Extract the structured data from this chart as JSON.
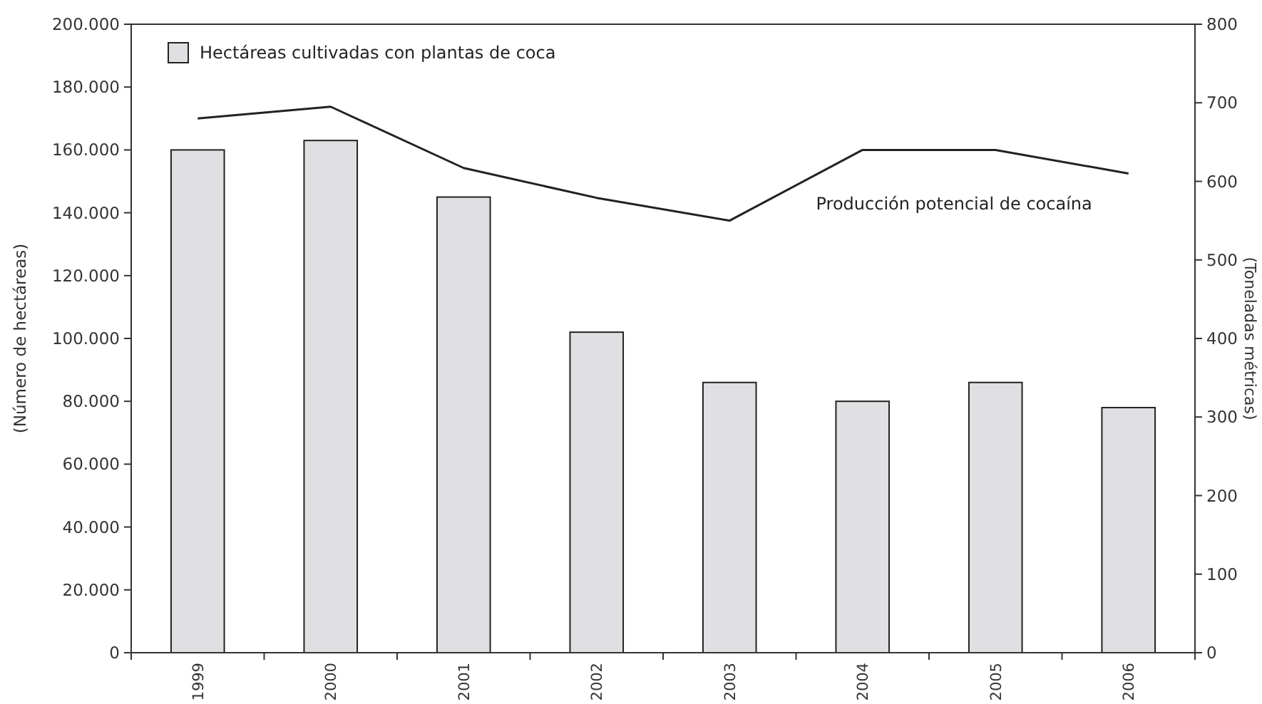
{
  "chart_data": {
    "type": "bar",
    "categories": [
      "1999",
      "2000",
      "2001",
      "2002",
      "2003",
      "2004",
      "2005",
      "2006"
    ],
    "series": [
      {
        "name": "Hectáreas cultivadas con plantas de coca",
        "color": "#e0e0e2",
        "values": [
          160000,
          163000,
          145000,
          102000,
          86000,
          80000,
          86000,
          78000
        ]
      },
      {
        "name": "Producción potencial de cocaína",
        "type": "line",
        "axis": "y2",
        "color": "#222222",
        "values": [
          680,
          695,
          617,
          579,
          550,
          640,
          640,
          610
        ]
      }
    ],
    "ylabel": "(Número de hectáreas)",
    "y2label": "(Toneladas métricas)",
    "ylim": [
      0,
      200000
    ],
    "yticks": [
      {
        "value": 0,
        "label": "0"
      },
      {
        "value": 20000,
        "label": "20.000"
      },
      {
        "value": 40000,
        "label": "40.000"
      },
      {
        "value": 60000,
        "label": "60.000"
      },
      {
        "value": 80000,
        "label": "80.000"
      },
      {
        "value": 100000,
        "label": "100.000"
      },
      {
        "value": 120000,
        "label": "120.000"
      },
      {
        "value": 140000,
        "label": "140.000"
      },
      {
        "value": 160000,
        "label": "160.000"
      },
      {
        "value": 180000,
        "label": "180.000"
      },
      {
        "value": 200000,
        "label": "200.000"
      }
    ],
    "y2lim": [
      0,
      800
    ],
    "y2ticks": [
      0,
      100,
      200,
      300,
      400,
      500,
      600,
      700,
      800
    ],
    "legend": "top left",
    "grid": false,
    "line_style": "solid",
    "marker": "none"
  }
}
